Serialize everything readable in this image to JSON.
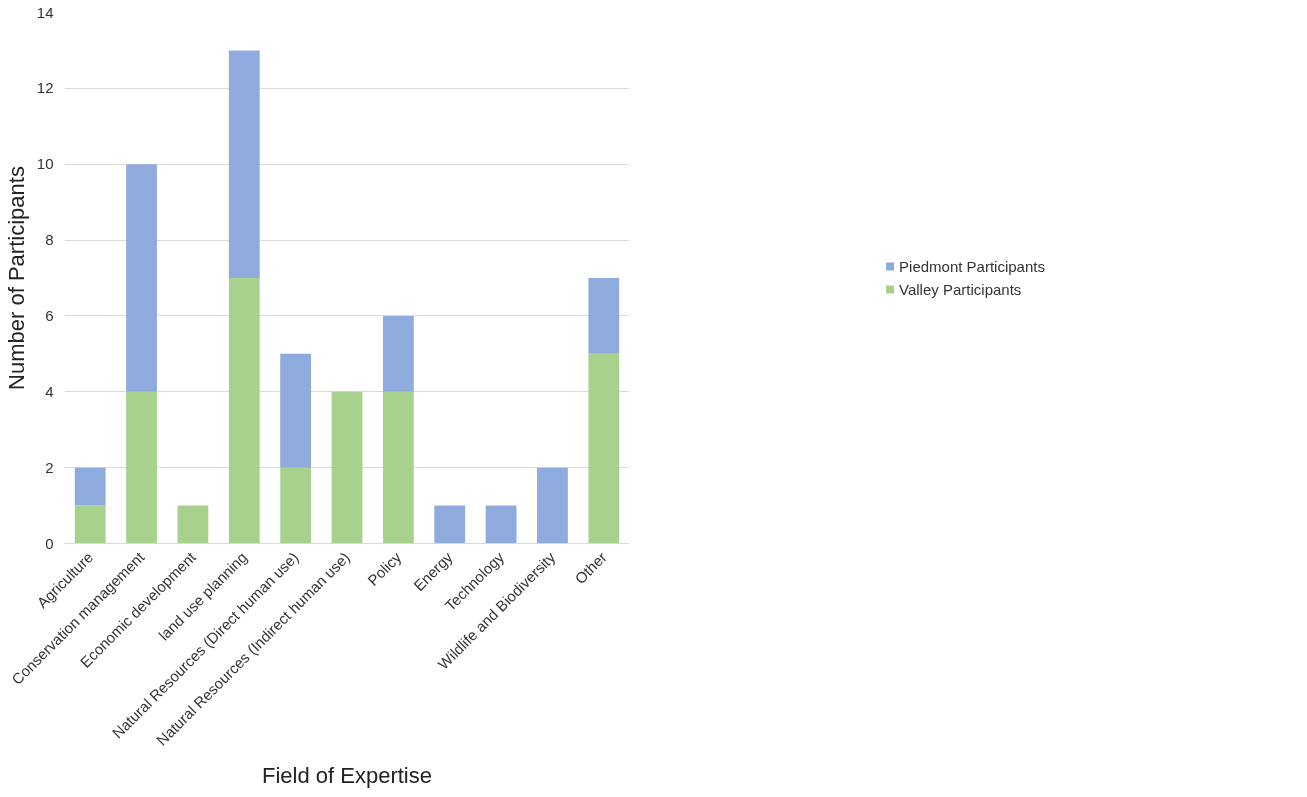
{
  "chart_data": {
    "type": "bar",
    "stacked": true,
    "xlabel": "Field of Expertise",
    "ylabel": "Number of Participants",
    "categories": [
      "Agriculture",
      "Conservation management",
      "Economic development",
      "land use planning",
      "Natural Resources (Direct human use)",
      "Natural Resources (Indirect human use)",
      "Policy",
      "Energy",
      "Technology",
      "Wildlife and Biodiversity",
      "Other"
    ],
    "series": [
      {
        "name": "Valley Participants",
        "color": "#a9d18e",
        "values": [
          1,
          4,
          1,
          7,
          2,
          4,
          4,
          0,
          0,
          0,
          5
        ]
      },
      {
        "name": "Piedmont Participants",
        "color": "#8faadc",
        "values": [
          1,
          6,
          0,
          6,
          3,
          0,
          2,
          1,
          1,
          2,
          2
        ]
      }
    ],
    "ylim": [
      0,
      14
    ],
    "yticks": [
      0,
      2,
      4,
      6,
      8,
      10,
      12,
      14
    ],
    "grid": "y",
    "legend": "right"
  }
}
